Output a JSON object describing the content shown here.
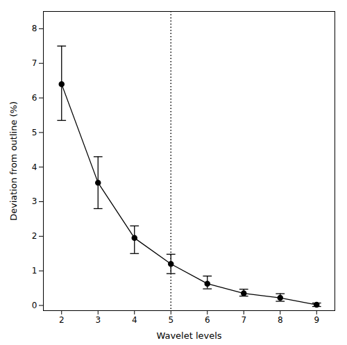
{
  "chart_data": {
    "type": "line",
    "xlabel": "Wavelet levels",
    "ylabel": "Deviation from outline (%)",
    "x": [
      2,
      3,
      4,
      5,
      6,
      7,
      8,
      9
    ],
    "series": [
      {
        "color": "#000000",
        "marker": "circle",
        "line_style": "solid",
        "values": [
          6.4,
          3.55,
          1.95,
          1.2,
          0.63,
          0.35,
          0.22,
          0.02
        ],
        "error_lower": [
          1.05,
          0.75,
          0.45,
          0.28,
          0.15,
          0.08,
          0.1,
          0.05
        ],
        "error_upper": [
          1.1,
          0.75,
          0.35,
          0.28,
          0.22,
          0.12,
          0.12,
          0.05
        ]
      }
    ],
    "vline": {
      "x": 5,
      "color": "#000000",
      "line_style": "dotted"
    },
    "xlim": [
      1.5,
      9.5
    ],
    "xticks": [
      2,
      3,
      4,
      5,
      6,
      7,
      8,
      9
    ],
    "ylim": [
      -0.15,
      8.5
    ],
    "yticks": [
      0,
      1,
      2,
      3,
      4,
      5,
      6,
      7,
      8
    ],
    "grid": false
  }
}
